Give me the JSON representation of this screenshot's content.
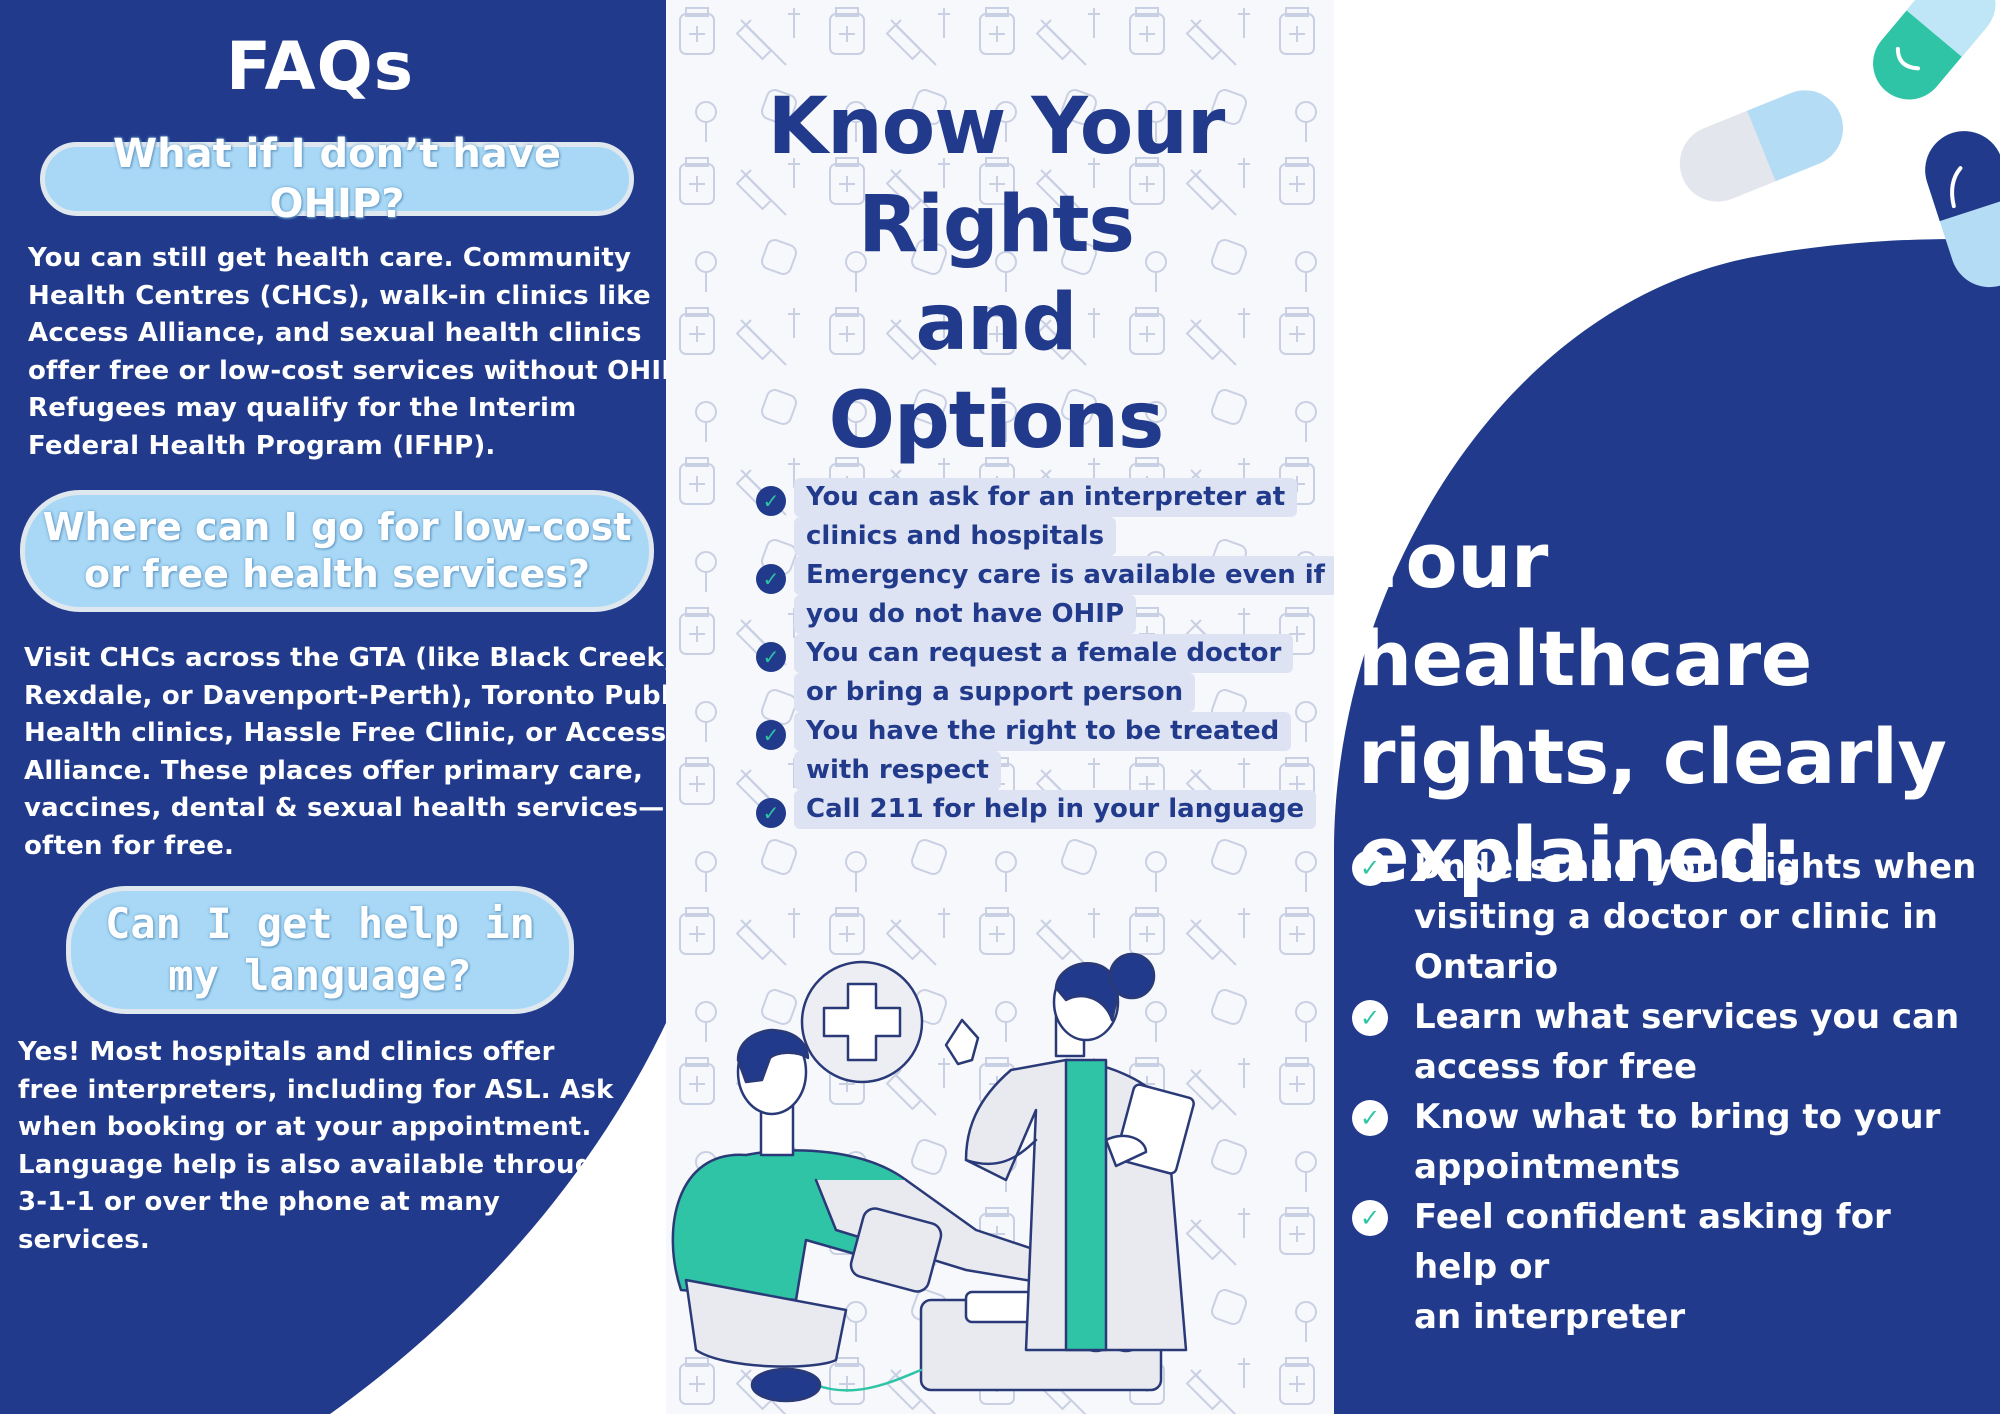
{
  "colors": {
    "navy": "#213a8b",
    "light_blue_pill": "#a8d8f5",
    "teal_accent": "#2ec4a5",
    "pattern_background": "#f7f8fb",
    "highlight": "#dde3f2"
  },
  "faq": {
    "title": "FAQs",
    "items": [
      {
        "question": "What if I don’t have OHIP?",
        "answer_lines": [
          "You can still get health care. Community",
          "Health Centres (CHCs), walk-in clinics like",
          "Access Alliance, and sexual health clinics",
          "offer free or low-cost services without OHIP.",
          "Refugees may qualify for the Interim",
          "Federal Health Program (IFHP)."
        ]
      },
      {
        "question": "Where can I go for low-cost or free health services?",
        "answer_lines": [
          "Visit CHCs across the GTA (like Black Creek,",
          "Rexdale, or Davenport-Perth), Toronto Public",
          "Health clinics, Hassle Free Clinic, or Access",
          "Alliance. These places offer primary care,",
          "vaccines, dental & sexual health services—",
          "often for free."
        ]
      },
      {
        "question": "Can I get help in my language?",
        "answer_lines": [
          "Yes! Most hospitals and clinics offer",
          "free interpreters, including for ASL. Ask",
          "when booking or at your appointment.",
          "Language help is also available through",
          "3-1-1 or over the phone at many",
          "services."
        ]
      }
    ]
  },
  "middle": {
    "title_lines": [
      "Know Your",
      "Rights and",
      "Options"
    ],
    "checklist": [
      {
        "lines": [
          "You can ask for an interpreter at",
          "clinics and hospitals"
        ]
      },
      {
        "lines": [
          "Emergency care is available even if",
          "you do not have OHIP"
        ]
      },
      {
        "lines": [
          "You can request a female doctor",
          "or bring a support person"
        ]
      },
      {
        "lines": [
          "You have the right to be treated",
          "with respect"
        ]
      },
      {
        "lines": [
          "Call 211 for help in your language"
        ]
      }
    ],
    "illustration": "doctor-checking-patient-blood-pressure"
  },
  "right": {
    "title_lines": [
      "Your healthcare",
      "rights, clearly",
      "explained:"
    ],
    "items": [
      {
        "lines": [
          "Understand your rights when",
          "visiting a doctor or clinic in",
          "Ontario"
        ]
      },
      {
        "lines": [
          "Learn what services you can",
          "access for free"
        ]
      },
      {
        "lines": [
          "Know what to bring to your",
          "appointments"
        ]
      },
      {
        "lines": [
          "Feel confident asking for help or",
          "an interpreter"
        ]
      }
    ],
    "decoration": "capsule-pills"
  }
}
